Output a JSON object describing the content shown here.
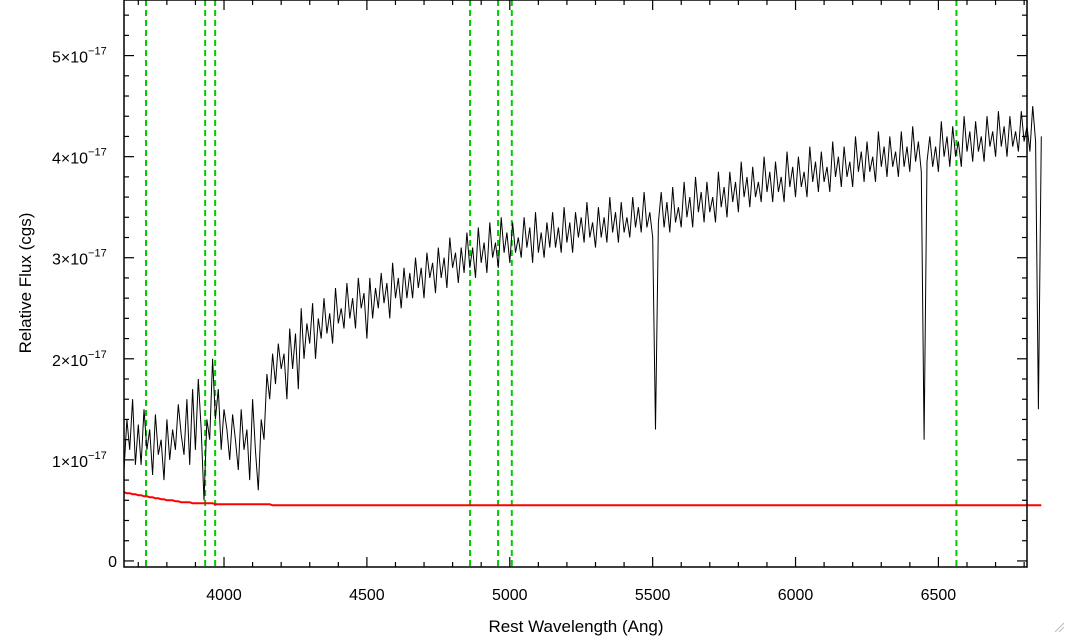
{
  "chart_data": {
    "type": "line",
    "xlabel": "Rest Wavelength (Ang)",
    "ylabel": "Relative Flux (cgs)",
    "xlim": [
      3650,
      6810
    ],
    "ylim": [
      -6e-19,
      5.55e-17
    ],
    "x_ticks": [
      {
        "value": 4000,
        "label": "4000"
      },
      {
        "value": 4500,
        "label": "4500"
      },
      {
        "value": 5000,
        "label": "5000"
      },
      {
        "value": 5500,
        "label": "5500"
      },
      {
        "value": 6000,
        "label": "6000"
      },
      {
        "value": 6500,
        "label": "6500"
      }
    ],
    "y_ticks": [
      {
        "value": 0,
        "label": "0",
        "mantissa": "",
        "exponent": ""
      },
      {
        "value": 1e-17,
        "label": "1×10^-17",
        "mantissa": "1×10",
        "exponent": "−17"
      },
      {
        "value": 2e-17,
        "label": "2×10^-17",
        "mantissa": "2×10",
        "exponent": "−17"
      },
      {
        "value": 3e-17,
        "label": "3×10^-17",
        "mantissa": "3×10",
        "exponent": "−17"
      },
      {
        "value": 4e-17,
        "label": "4×10^-17",
        "mantissa": "4×10",
        "exponent": "−17"
      },
      {
        "value": 5e-17,
        "label": "5×10^-17",
        "mantissa": "5×10",
        "exponent": "−17"
      }
    ],
    "x_minor_step": 100,
    "y_minor_step": 2e-18,
    "grid": false,
    "reference_lines": {
      "style": "dashed",
      "color": "#00cc00",
      "x": [
        3727,
        3934,
        3969,
        4861,
        4959,
        5007,
        6563
      ]
    },
    "series": [
      {
        "color": "#000000",
        "x_start": 3650,
        "x_step": 10,
        "values": [
          0.9,
          1.4,
          1.1,
          1.6,
          0.95,
          1.35,
          0.95,
          1.5,
          1.1,
          1.3,
          0.85,
          1.45,
          1.05,
          1.2,
          0.8,
          1.4,
          1.0,
          1.3,
          1.1,
          1.55,
          1.25,
          1.05,
          1.6,
          0.95,
          1.7,
          1.1,
          1.8,
          1.3,
          0.6,
          1.4,
          1.2,
          2.0,
          1.4,
          1.7,
          1.1,
          1.5,
          1.3,
          1.0,
          1.45,
          1.2,
          0.9,
          1.5,
          1.1,
          1.3,
          0.8,
          1.6,
          1.1,
          0.7,
          1.4,
          1.2,
          1.85,
          1.6,
          2.05,
          1.75,
          2.15,
          1.9,
          2.05,
          1.6,
          2.3,
          1.9,
          2.25,
          1.7,
          2.5,
          2.0,
          2.35,
          2.15,
          2.55,
          2.0,
          2.4,
          2.2,
          2.6,
          2.25,
          2.45,
          2.15,
          2.7,
          2.35,
          2.5,
          2.3,
          2.75,
          2.4,
          2.6,
          2.3,
          2.8,
          2.5,
          2.65,
          2.2,
          2.8,
          2.4,
          2.7,
          2.5,
          2.85,
          2.55,
          2.75,
          2.4,
          2.95,
          2.6,
          2.8,
          2.5,
          2.9,
          2.6,
          2.85,
          2.6,
          3.0,
          2.7,
          2.9,
          2.6,
          3.05,
          2.8,
          2.95,
          2.65,
          3.1,
          2.8,
          3.0,
          2.7,
          3.2,
          2.9,
          3.05,
          2.75,
          3.1,
          2.85,
          3.25,
          2.9,
          3.1,
          2.8,
          3.3,
          2.95,
          3.15,
          2.85,
          3.35,
          3.0,
          3.15,
          2.9,
          3.4,
          3.05,
          3.25,
          2.95,
          3.35,
          3.05,
          3.2,
          3.0,
          3.4,
          3.1,
          3.3,
          2.95,
          3.45,
          3.05,
          3.25,
          3.0,
          3.35,
          3.1,
          3.45,
          3.1,
          3.3,
          3.05,
          3.5,
          3.15,
          3.35,
          3.05,
          3.45,
          3.2,
          3.4,
          3.15,
          3.55,
          3.2,
          3.35,
          3.1,
          3.5,
          3.2,
          3.4,
          3.15,
          3.6,
          3.25,
          3.45,
          3.15,
          3.55,
          3.25,
          3.4,
          3.2,
          3.6,
          3.3,
          3.5,
          3.25,
          3.65,
          3.3,
          3.45,
          3.2,
          1.3,
          3.35,
          3.65,
          3.3,
          3.55,
          3.25,
          3.7,
          3.35,
          3.5,
          3.3,
          3.75,
          3.4,
          3.6,
          3.3,
          3.8,
          3.45,
          3.65,
          3.35,
          3.75,
          3.45,
          3.6,
          3.35,
          3.85,
          3.5,
          3.7,
          3.4,
          3.85,
          3.55,
          3.75,
          3.45,
          3.95,
          3.6,
          3.8,
          3.5,
          3.9,
          3.6,
          3.75,
          3.55,
          4.0,
          3.65,
          3.85,
          3.55,
          3.95,
          3.65,
          3.8,
          3.55,
          4.05,
          3.7,
          3.9,
          3.6,
          4.0,
          3.7,
          3.85,
          3.6,
          4.1,
          3.75,
          3.95,
          3.65,
          4.05,
          3.75,
          3.9,
          3.65,
          4.15,
          3.8,
          4.0,
          3.7,
          4.1,
          3.8,
          3.95,
          3.7,
          4.2,
          3.85,
          4.05,
          3.75,
          4.15,
          3.85,
          4.0,
          3.75,
          4.25,
          3.9,
          4.1,
          3.8,
          4.2,
          3.9,
          4.05,
          3.8,
          4.25,
          3.9,
          4.1,
          3.85,
          4.3,
          3.95,
          4.15,
          3.85,
          1.2,
          3.95,
          4.2,
          3.9,
          4.1,
          3.85,
          4.35,
          4.0,
          4.2,
          3.9,
          4.3,
          4.0,
          4.15,
          3.9,
          4.4,
          4.05,
          4.25,
          3.95,
          4.35,
          4.05,
          4.2,
          3.95,
          4.4,
          4.1,
          4.25,
          4.0,
          4.45,
          4.1,
          4.3,
          4.0,
          4.4,
          4.1,
          4.25,
          4.05,
          4.45,
          4.15,
          4.3,
          4.05,
          4.5,
          4.15,
          1.5,
          4.2
        ]
      },
      {
        "color": "#ff0000",
        "x_start": 3650,
        "x_step": 10,
        "values": [
          0.68,
          0.67,
          0.67,
          0.66,
          0.66,
          0.65,
          0.65,
          0.64,
          0.64,
          0.63,
          0.63,
          0.62,
          0.62,
          0.61,
          0.61,
          0.6,
          0.6,
          0.6,
          0.59,
          0.59,
          0.58,
          0.58,
          0.58,
          0.58,
          0.57,
          0.57,
          0.57,
          0.57,
          0.57,
          0.57,
          0.57,
          0.57,
          0.56,
          0.56,
          0.56,
          0.56,
          0.56,
          0.56,
          0.56,
          0.56,
          0.56,
          0.56,
          0.56,
          0.56,
          0.56,
          0.56,
          0.56,
          0.56,
          0.56,
          0.56,
          0.56,
          0.56,
          0.55,
          0.55,
          0.55,
          0.55,
          0.55,
          0.55,
          0.55,
          0.55,
          0.55,
          0.55,
          0.55,
          0.55,
          0.55,
          0.55,
          0.55,
          0.55,
          0.55,
          0.55,
          0.55,
          0.55,
          0.55,
          0.55,
          0.55,
          0.55,
          0.55,
          0.55,
          0.55,
          0.55,
          0.55,
          0.55,
          0.55,
          0.55,
          0.55,
          0.55,
          0.55,
          0.55,
          0.55,
          0.55,
          0.55,
          0.55,
          0.55,
          0.55,
          0.55,
          0.55,
          0.55,
          0.55,
          0.55,
          0.55,
          0.55,
          0.55,
          0.55,
          0.55,
          0.55,
          0.55,
          0.55,
          0.55,
          0.55,
          0.55,
          0.55,
          0.55,
          0.55,
          0.55,
          0.55,
          0.55,
          0.55,
          0.55,
          0.55,
          0.55,
          0.55,
          0.55,
          0.55,
          0.55,
          0.55,
          0.55,
          0.55,
          0.55,
          0.55,
          0.55,
          0.55,
          0.55,
          0.55,
          0.55,
          0.55,
          0.55,
          0.55,
          0.55,
          0.55,
          0.55,
          0.55,
          0.55,
          0.55,
          0.55,
          0.55,
          0.55,
          0.55,
          0.55,
          0.55,
          0.55,
          0.55,
          0.55,
          0.55,
          0.55,
          0.55,
          0.55,
          0.55,
          0.55,
          0.55,
          0.55,
          0.55,
          0.55,
          0.55,
          0.55,
          0.55,
          0.55,
          0.55,
          0.55,
          0.55,
          0.55,
          0.55,
          0.55,
          0.55,
          0.55,
          0.55,
          0.55,
          0.55,
          0.55,
          0.55,
          0.55,
          0.55,
          0.55,
          0.55,
          0.55,
          0.55,
          0.55,
          0.55,
          0.55,
          0.55,
          0.55,
          0.55,
          0.55,
          0.55,
          0.55,
          0.55,
          0.55,
          0.55,
          0.55,
          0.55,
          0.55,
          0.55,
          0.55,
          0.55,
          0.55,
          0.55,
          0.55,
          0.55,
          0.55,
          0.55,
          0.55,
          0.55,
          0.55,
          0.55,
          0.55,
          0.55,
          0.55,
          0.55,
          0.55,
          0.55,
          0.55,
          0.55,
          0.55,
          0.55,
          0.55,
          0.55,
          0.55,
          0.55,
          0.55,
          0.55,
          0.55,
          0.55,
          0.55,
          0.55,
          0.55,
          0.55,
          0.55,
          0.55,
          0.55,
          0.55,
          0.55,
          0.55,
          0.55,
          0.55,
          0.55,
          0.55,
          0.55,
          0.55,
          0.55,
          0.55,
          0.55,
          0.55,
          0.55,
          0.55,
          0.55,
          0.55,
          0.55,
          0.55,
          0.55,
          0.55,
          0.55,
          0.55,
          0.55,
          0.55,
          0.55,
          0.55,
          0.55,
          0.55,
          0.55,
          0.55,
          0.55,
          0.55,
          0.55,
          0.55,
          0.55,
          0.55,
          0.55,
          0.55,
          0.55,
          0.55,
          0.55,
          0.55,
          0.55,
          0.55,
          0.55,
          0.55,
          0.55,
          0.55,
          0.55,
          0.55,
          0.55,
          0.55,
          0.55,
          0.55,
          0.55,
          0.55,
          0.55,
          0.55,
          0.55,
          0.55,
          0.55,
          0.55,
          0.55,
          0.55,
          0.55,
          0.55,
          0.55,
          0.55,
          0.55,
          0.55,
          0.55,
          0.55,
          0.55,
          0.55,
          0.55,
          0.55,
          0.55,
          0.55,
          0.55,
          0.55,
          0.55,
          0.55,
          0.55
        ]
      }
    ]
  }
}
